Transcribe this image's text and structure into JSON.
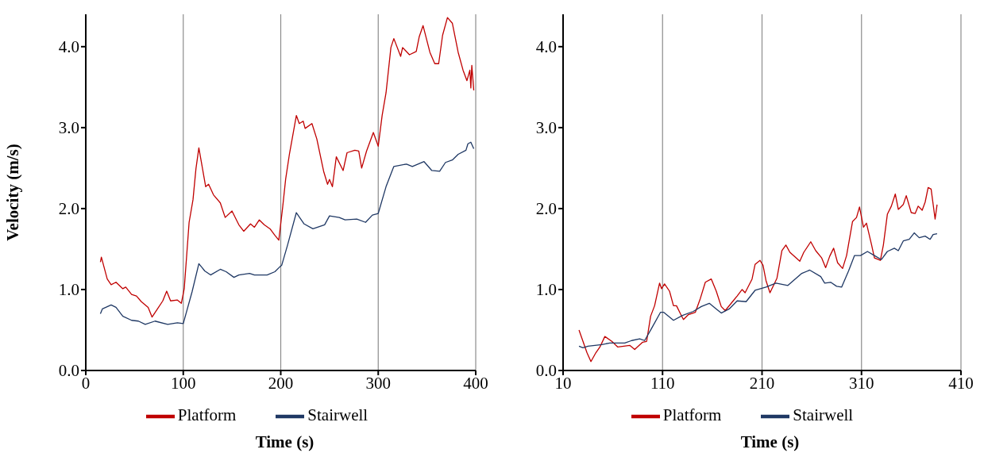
{
  "chart_data": [
    {
      "type": "line",
      "ylabel": "Velocity (m/s)",
      "xlabel": "Time (s)",
      "xlim": [
        0,
        400
      ],
      "xticks": [
        0,
        100,
        200,
        300,
        400
      ],
      "ylim": [
        0,
        4.4
      ],
      "yticks": [
        {
          "value": 0,
          "label": "0.0"
        },
        {
          "value": 1,
          "label": "1.0"
        },
        {
          "value": 2,
          "label": "2.0"
        },
        {
          "value": 3,
          "label": "3.0"
        },
        {
          "value": 4,
          "label": "4.0"
        }
      ],
      "grid": "x",
      "legend": "bottom",
      "line_style": "solid",
      "series": [
        {
          "name": "Platform",
          "color": "#c00000",
          "x": [
            15,
            16,
            22,
            26,
            31,
            38,
            41,
            47,
            52,
            57,
            64,
            68,
            73,
            79,
            83,
            87,
            94,
            98,
            101,
            106,
            110,
            113,
            116,
            123,
            126,
            131,
            138,
            143,
            150,
            157,
            162,
            169,
            173,
            178,
            183,
            189,
            194,
            198,
            202,
            205,
            209,
            216,
            219,
            223,
            225,
            232,
            237,
            244,
            248,
            250,
            253,
            257,
            264,
            268,
            276,
            280,
            283,
            288,
            295,
            300,
            304,
            308,
            313,
            316,
            323,
            325,
            332,
            339,
            342,
            346,
            353,
            358,
            362,
            366,
            371,
            376,
            382,
            387,
            391,
            394,
            395,
            396,
            398
          ],
          "values": [
            1.34,
            1.4,
            1.13,
            1.06,
            1.09,
            1.01,
            1.03,
            0.94,
            0.92,
            0.85,
            0.78,
            0.66,
            0.75,
            0.86,
            0.98,
            0.86,
            0.87,
            0.83,
            1.01,
            1.83,
            2.11,
            2.49,
            2.75,
            2.27,
            2.3,
            2.17,
            2.07,
            1.89,
            1.97,
            1.8,
            1.72,
            1.81,
            1.77,
            1.86,
            1.8,
            1.75,
            1.67,
            1.61,
            2.02,
            2.36,
            2.68,
            3.15,
            3.05,
            3.08,
            2.99,
            3.05,
            2.86,
            2.46,
            2.3,
            2.36,
            2.27,
            2.64,
            2.47,
            2.69,
            2.72,
            2.71,
            2.5,
            2.71,
            2.94,
            2.77,
            3.15,
            3.43,
            3.99,
            4.1,
            3.88,
            3.99,
            3.9,
            3.94,
            4.12,
            4.26,
            3.93,
            3.79,
            3.79,
            4.14,
            4.36,
            4.29,
            3.93,
            3.71,
            3.58,
            3.71,
            3.49,
            3.77,
            3.46
          ]
        },
        {
          "name": "Stairwell",
          "color": "#1f3864",
          "x": [
            15,
            17,
            26,
            31,
            38,
            47,
            54,
            61,
            71,
            84,
            94,
            100,
            109,
            116,
            122,
            128,
            138,
            144,
            152,
            157,
            168,
            173,
            186,
            194,
            199,
            201,
            207,
            216,
            224,
            233,
            245,
            250,
            260,
            266,
            278,
            287,
            294,
            300,
            308,
            316,
            329,
            335,
            347,
            355,
            363,
            369,
            376,
            382,
            390,
            392,
            395,
            398
          ],
          "values": [
            0.7,
            0.76,
            0.81,
            0.78,
            0.67,
            0.62,
            0.61,
            0.57,
            0.61,
            0.57,
            0.59,
            0.58,
            0.97,
            1.32,
            1.23,
            1.18,
            1.25,
            1.22,
            1.15,
            1.18,
            1.2,
            1.18,
            1.18,
            1.22,
            1.28,
            1.3,
            1.55,
            1.95,
            1.81,
            1.75,
            1.8,
            1.91,
            1.89,
            1.86,
            1.87,
            1.83,
            1.92,
            1.94,
            2.27,
            2.52,
            2.55,
            2.52,
            2.58,
            2.47,
            2.46,
            2.57,
            2.6,
            2.67,
            2.72,
            2.8,
            2.82,
            2.74
          ]
        }
      ]
    },
    {
      "type": "line",
      "xlabel": "Time (s)",
      "xlim": [
        10,
        410
      ],
      "xticks": [
        10,
        110,
        210,
        310,
        410
      ],
      "ylim": [
        0,
        4.4
      ],
      "yticks": [
        {
          "value": 0,
          "label": "0.0"
        },
        {
          "value": 1,
          "label": "1.0"
        },
        {
          "value": 2,
          "label": "2.0"
        },
        {
          "value": 3,
          "label": "3.0"
        },
        {
          "value": 4,
          "label": "4.0"
        }
      ],
      "grid": "x",
      "legend": "bottom",
      "line_style": "solid",
      "series": [
        {
          "name": "Platform",
          "color": "#c00000",
          "x": [
            26,
            30,
            34,
            38,
            43,
            47,
            52,
            59,
            65,
            77,
            82,
            90,
            94,
            98,
            102,
            107,
            109,
            112,
            117,
            121,
            124,
            128,
            131,
            136,
            143,
            148,
            153,
            159,
            164,
            169,
            173,
            181,
            185,
            190,
            193,
            200,
            203,
            208,
            211,
            214,
            218,
            225,
            230,
            234,
            238,
            248,
            252,
            259,
            264,
            270,
            274,
            278,
            282,
            286,
            291,
            295,
            301,
            305,
            308,
            312,
            315,
            320,
            323,
            329,
            332,
            336,
            340,
            344,
            347,
            352,
            355,
            360,
            364,
            367,
            371,
            374,
            377,
            380,
            384,
            386
          ],
          "values": [
            0.5,
            0.36,
            0.22,
            0.11,
            0.22,
            0.29,
            0.42,
            0.36,
            0.29,
            0.31,
            0.26,
            0.35,
            0.36,
            0.67,
            0.8,
            1.08,
            1.01,
            1.07,
            0.98,
            0.8,
            0.8,
            0.7,
            0.63,
            0.69,
            0.72,
            0.89,
            1.09,
            1.13,
            0.98,
            0.79,
            0.74,
            0.86,
            0.92,
            1.0,
            0.96,
            1.13,
            1.31,
            1.36,
            1.3,
            1.11,
            0.96,
            1.14,
            1.48,
            1.55,
            1.46,
            1.35,
            1.46,
            1.59,
            1.48,
            1.39,
            1.27,
            1.41,
            1.51,
            1.33,
            1.26,
            1.42,
            1.84,
            1.89,
            2.02,
            1.77,
            1.82,
            1.56,
            1.39,
            1.36,
            1.55,
            1.93,
            2.03,
            2.18,
            1.99,
            2.05,
            2.16,
            1.95,
            1.94,
            2.03,
            1.98,
            2.08,
            2.26,
            2.24,
            1.87,
            2.05
          ]
        },
        {
          "name": "Stairwell",
          "color": "#1f3864",
          "x": [
            26,
            30,
            35,
            49,
            57,
            72,
            79,
            87,
            92,
            99,
            108,
            111,
            121,
            130,
            141,
            149,
            157,
            164,
            169,
            177,
            185,
            194,
            203,
            214,
            224,
            236,
            250,
            258,
            269,
            273,
            279,
            285,
            290,
            297,
            303,
            309,
            316,
            323,
            330,
            336,
            343,
            347,
            352,
            358,
            363,
            368,
            374,
            379,
            382,
            386
          ],
          "values": [
            0.3,
            0.28,
            0.3,
            0.32,
            0.34,
            0.34,
            0.37,
            0.39,
            0.37,
            0.52,
            0.72,
            0.72,
            0.62,
            0.68,
            0.73,
            0.79,
            0.83,
            0.76,
            0.71,
            0.76,
            0.86,
            0.85,
            0.99,
            1.03,
            1.08,
            1.05,
            1.2,
            1.24,
            1.16,
            1.08,
            1.09,
            1.04,
            1.03,
            1.23,
            1.42,
            1.42,
            1.47,
            1.42,
            1.37,
            1.47,
            1.51,
            1.48,
            1.6,
            1.62,
            1.7,
            1.64,
            1.66,
            1.62,
            1.68,
            1.69
          ]
        }
      ]
    }
  ]
}
